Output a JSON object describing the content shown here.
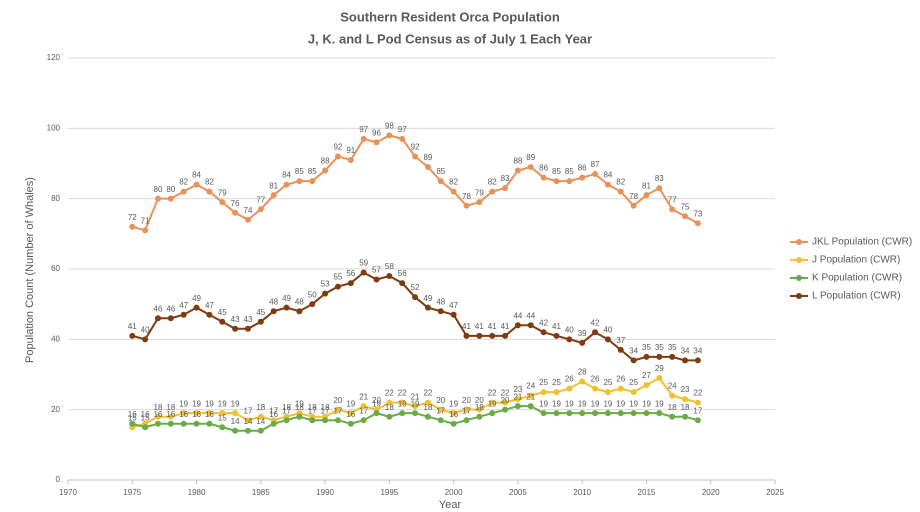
{
  "chart_data": {
    "type": "line",
    "title": "Southern Resident Orca Population",
    "subtitle": "J, K. and L Pod Census as of July 1 Each Year",
    "x_label": "Year",
    "y_label": "Population Count (Number of Whales)",
    "x": [
      1975,
      1976,
      1977,
      1978,
      1979,
      1980,
      1981,
      1982,
      1983,
      1984,
      1985,
      1986,
      1987,
      1988,
      1989,
      1990,
      1991,
      1992,
      1993,
      1994,
      1995,
      1996,
      1997,
      1998,
      1999,
      2000,
      2001,
      2002,
      2003,
      2004,
      2005,
      2006,
      2007,
      2008,
      2009,
      2010,
      2011,
      2012,
      2013,
      2014,
      2015,
      2016,
      2017,
      2018,
      2019
    ],
    "series": [
      {
        "name": "JKL Population (CWR)",
        "color": "#e8925a",
        "values": [
          72,
          71,
          80,
          80,
          82,
          84,
          82,
          79,
          76,
          74,
          77,
          81,
          84,
          85,
          85,
          88,
          92,
          91,
          97,
          96,
          98,
          97,
          92,
          89,
          85,
          82,
          78,
          79,
          82,
          83,
          88,
          89,
          86,
          85,
          85,
          86,
          87,
          84,
          82,
          78,
          81,
          83,
          77,
          75,
          73
        ]
      },
      {
        "name": "J Population (CWR)",
        "color": "#f0c030",
        "values": [
          15,
          16,
          18,
          18,
          19,
          19,
          19,
          19,
          19,
          17,
          18,
          17,
          18,
          19,
          18,
          18,
          20,
          19,
          21,
          20,
          22,
          22,
          21,
          22,
          20,
          19,
          20,
          20,
          22,
          22,
          23,
          24,
          25,
          25,
          26,
          28,
          26,
          25,
          26,
          25,
          27,
          29,
          24,
          23,
          22
        ]
      },
      {
        "name": "K Population (CWR)",
        "color": "#6aab46",
        "values": [
          16,
          15,
          16,
          16,
          16,
          16,
          16,
          15,
          14,
          14,
          14,
          16,
          17,
          18,
          17,
          17,
          17,
          16,
          17,
          19,
          18,
          19,
          19,
          18,
          17,
          16,
          17,
          18,
          19,
          20,
          21,
          21,
          19,
          19,
          19,
          19,
          19,
          19,
          19,
          19,
          19,
          19,
          18,
          18,
          17
        ]
      },
      {
        "name": "L Population (CWR)",
        "color": "#7f3b12",
        "values": [
          41,
          40,
          46,
          46,
          47,
          49,
          47,
          45,
          43,
          43,
          45,
          48,
          49,
          48,
          50,
          53,
          55,
          56,
          59,
          57,
          58,
          56,
          52,
          49,
          48,
          47,
          41,
          41,
          41,
          41,
          44,
          44,
          42,
          41,
          40,
          39,
          42,
          40,
          37,
          34,
          35,
          35,
          35,
          34,
          34
        ]
      }
    ],
    "xlim": [
      1970,
      2025
    ],
    "xticks": [
      1970,
      1975,
      1980,
      1985,
      1990,
      1995,
      2000,
      2005,
      2010,
      2015,
      2020,
      2025
    ],
    "ylim": [
      0,
      120
    ],
    "yticks": [
      0,
      20,
      40,
      60,
      80,
      100,
      120
    ],
    "grid": true,
    "legend": "right",
    "data_labels": true
  }
}
